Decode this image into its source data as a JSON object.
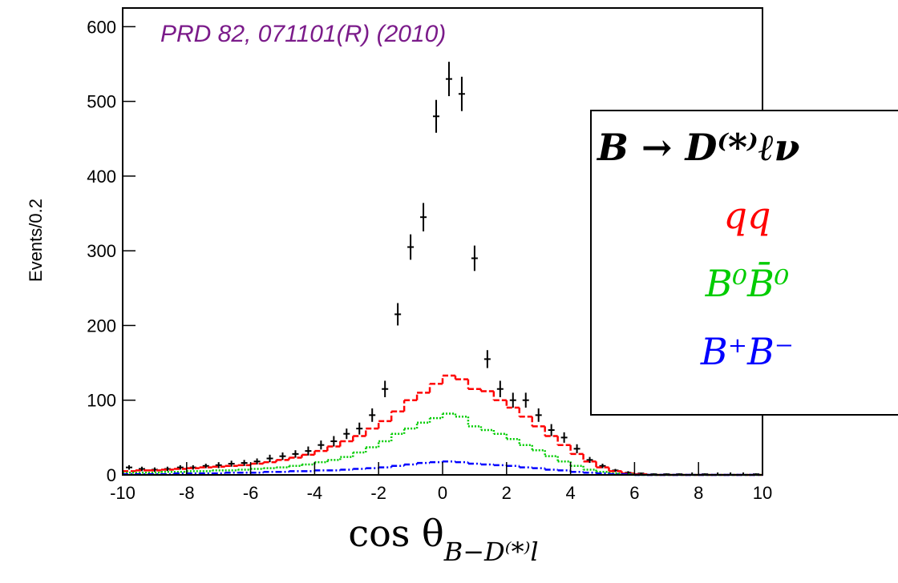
{
  "chart_data": {
    "type": "histogram",
    "annotation": "PRD 82, 071101(R) (2010)",
    "xlabel": "cos θ",
    "xlabel_sub": "B−D⁽*⁾l",
    "ylabel": "Events/0.2",
    "xlim": [
      -10,
      10
    ],
    "ylim": [
      0,
      625
    ],
    "xticks": [
      -10,
      -8,
      -6,
      -4,
      -2,
      0,
      2,
      4,
      6,
      8,
      10
    ],
    "yticks": [
      0,
      100,
      200,
      300,
      400,
      500,
      600
    ],
    "x": [
      -9.8,
      -9.4,
      -9.0,
      -8.6,
      -8.2,
      -7.8,
      -7.4,
      -7.0,
      -6.6,
      -6.2,
      -5.8,
      -5.4,
      -5.0,
      -4.6,
      -4.2,
      -3.8,
      -3.4,
      -3.0,
      -2.6,
      -2.2,
      -1.8,
      -1.4,
      -1.0,
      -0.6,
      -0.2,
      0.2,
      0.6,
      1.0,
      1.4,
      1.8,
      2.2,
      2.6,
      3.0,
      3.4,
      3.8,
      4.2,
      4.6,
      5.0,
      5.4,
      5.8,
      6.2,
      6.6,
      7.0,
      7.4,
      7.8,
      8.2,
      8.6,
      9.0,
      9.4,
      9.8
    ],
    "series": [
      {
        "name": "B → D⁽*⁾ℓν",
        "color": "#000000",
        "style": "points",
        "values": [
          10,
          8,
          7,
          8,
          10,
          10,
          12,
          13,
          15,
          16,
          18,
          22,
          25,
          28,
          32,
          40,
          45,
          55,
          62,
          80,
          115,
          215,
          305,
          345,
          480,
          530,
          510,
          290,
          155,
          115,
          100,
          100,
          80,
          60,
          50,
          35,
          20,
          12,
          6,
          3,
          2,
          1,
          1,
          1,
          0,
          1,
          0,
          0,
          0,
          1
        ],
        "errors": [
          3,
          3,
          3,
          3,
          3,
          3,
          3,
          4,
          4,
          4,
          4,
          5,
          5,
          5,
          6,
          6,
          7,
          7,
          8,
          9,
          11,
          15,
          17,
          19,
          22,
          23,
          23,
          17,
          12,
          11,
          10,
          10,
          9,
          8,
          7,
          6,
          4,
          3,
          2,
          2,
          1,
          1,
          1,
          1,
          0,
          1,
          0,
          0,
          0,
          1
        ]
      },
      {
        "name": "qq",
        "color": "#ff0000",
        "style": "dashed",
        "values": [
          5,
          6,
          6,
          7,
          8,
          9,
          10,
          11,
          12,
          13,
          15,
          17,
          20,
          23,
          27,
          32,
          38,
          45,
          52,
          62,
          72,
          85,
          100,
          110,
          122,
          133,
          128,
          115,
          112,
          100,
          90,
          78,
          65,
          52,
          40,
          28,
          18,
          10,
          5,
          2,
          1,
          0,
          0,
          0,
          0,
          0,
          0,
          0,
          0,
          0
        ]
      },
      {
        "name": "B⁰B̄⁰",
        "color": "#00cc00",
        "style": "dotted",
        "values": [
          3,
          3,
          3,
          4,
          4,
          5,
          5,
          6,
          6,
          7,
          8,
          9,
          10,
          12,
          14,
          17,
          20,
          24,
          30,
          37,
          45,
          55,
          62,
          70,
          76,
          82,
          78,
          65,
          60,
          55,
          48,
          40,
          33,
          25,
          18,
          12,
          7,
          4,
          2,
          1,
          0,
          0,
          0,
          0,
          0,
          0,
          0,
          0,
          0,
          0
        ]
      },
      {
        "name": "B⁺B⁻",
        "color": "#0000ff",
        "style": "dashdot",
        "values": [
          1,
          1,
          1,
          1,
          2,
          2,
          2,
          2,
          3,
          3,
          3,
          4,
          4,
          5,
          5,
          6,
          6,
          7,
          8,
          9,
          10,
          12,
          14,
          16,
          17,
          18,
          17,
          15,
          14,
          13,
          12,
          10,
          9,
          7,
          6,
          4,
          3,
          2,
          1,
          1,
          0,
          0,
          0,
          0,
          0,
          0,
          0,
          0,
          0,
          0
        ]
      }
    ]
  }
}
